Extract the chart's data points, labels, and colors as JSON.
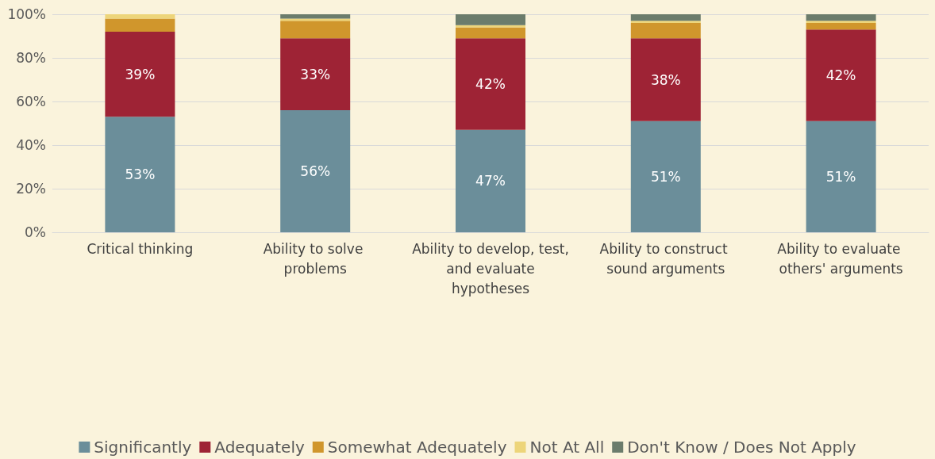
{
  "chart_data": {
    "type": "bar",
    "stacked": true,
    "categories": [
      "Critical thinking",
      "Ability to solve problems",
      "Ability to develop, test, and evaluate hypotheses",
      "Ability to construct sound arguments",
      "Ability to evaluate others' arguments"
    ],
    "series": [
      {
        "name": "Significantly",
        "color": "#6b8e9a",
        "values": [
          53,
          56,
          47,
          51,
          51
        ],
        "value_labels": [
          "53%",
          "56%",
          "47%",
          "51%",
          "51%"
        ]
      },
      {
        "name": "Adequately",
        "color": "#9e2335",
        "values": [
          39,
          33,
          42,
          38,
          42
        ],
        "value_labels": [
          "39%",
          "33%",
          "42%",
          "38%",
          "42%"
        ]
      },
      {
        "name": "Somewhat Adequately",
        "color": "#d0962c",
        "values": [
          6,
          8,
          5,
          7,
          3
        ]
      },
      {
        "name": "Not At All",
        "color": "#edd57a",
        "values": [
          2,
          1,
          1,
          1,
          1
        ]
      },
      {
        "name": "Don't Know / Does Not Apply",
        "color": "#6b7c6c",
        "values": [
          0,
          2,
          5,
          3,
          3
        ]
      }
    ],
    "ylim": [
      0,
      100
    ],
    "yticks": [
      {
        "value": 0,
        "label": "0%"
      },
      {
        "value": 20,
        "label": "20%"
      },
      {
        "value": 40,
        "label": "40%"
      },
      {
        "value": 60,
        "label": "60%"
      },
      {
        "value": 80,
        "label": "80%"
      },
      {
        "value": 100,
        "label": "100%"
      }
    ],
    "grid": "y",
    "legend": "bottom"
  }
}
